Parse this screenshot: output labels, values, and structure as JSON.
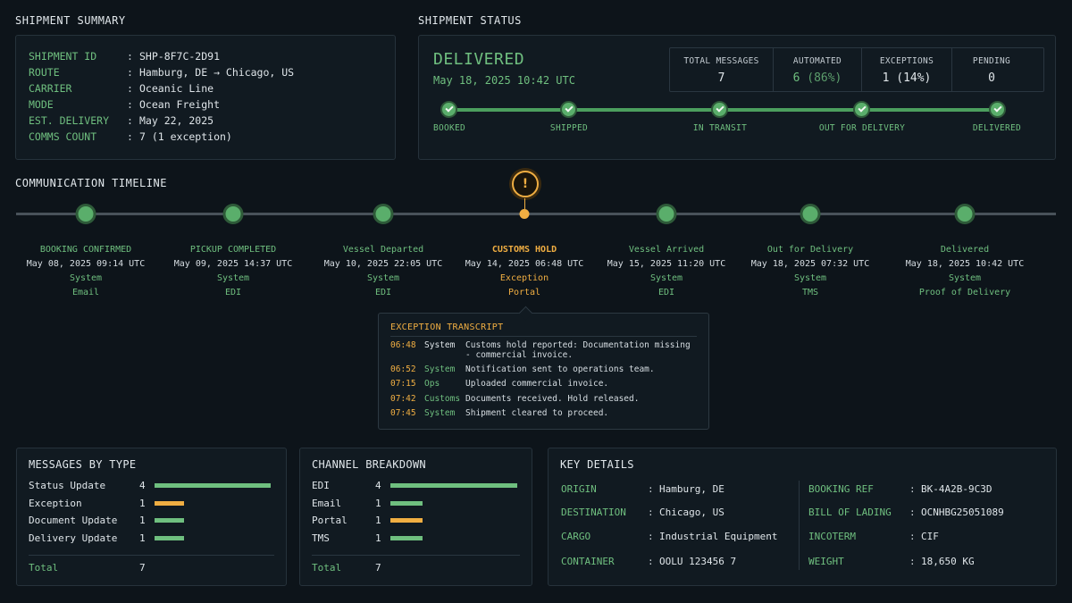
{
  "summary": {
    "title": "SHIPMENT SUMMARY",
    "rows": [
      {
        "key": "SHIPMENT ID",
        "value": "SHP-8F7C-2D91"
      },
      {
        "key": "ROUTE",
        "value": "Hamburg, DE → Chicago, US"
      },
      {
        "key": "CARRIER",
        "value": "Oceanic Line"
      },
      {
        "key": "MODE",
        "value": "Ocean Freight"
      },
      {
        "key": "EST. DELIVERY",
        "value": "May 22, 2025"
      },
      {
        "key": "COMMS COUNT",
        "value": "7 (1 exception)"
      }
    ],
    "separator": ":"
  },
  "status": {
    "title": "SHIPMENT STATUS",
    "state": "DELIVERED",
    "date": "May 18, 2025 10:42 UTC",
    "stats": [
      {
        "label": "TOTAL MESSAGES",
        "value": "7"
      },
      {
        "label": "AUTOMATED",
        "value": "6",
        "extra": "(86%)"
      },
      {
        "label": "EXCEPTIONS",
        "value": "1 (14%)"
      },
      {
        "label": "PENDING",
        "value": "0"
      }
    ],
    "stages": [
      "BOOKED",
      "SHIPPED",
      "IN TRANSIT",
      "OUT FOR DELIVERY",
      "DELIVERED"
    ]
  },
  "timeline": {
    "title": "COMMUNICATION TIMELINE",
    "events": [
      {
        "title": "BOOKING CONFIRMED",
        "time": "May 08, 2025 09:14 UTC",
        "source": "System",
        "channel": "Email"
      },
      {
        "title": "PICKUP COMPLETED",
        "time": "May 09, 2025 14:37 UTC",
        "source": "System",
        "channel": "EDI"
      },
      {
        "title": "Vessel Departed",
        "time": "May 10, 2025 22:05 UTC",
        "source": "System",
        "channel": "EDI"
      },
      {
        "title": "CUSTOMS HOLD",
        "time": "May 14, 2025 06:48 UTC",
        "source": "Exception",
        "channel": "Portal"
      },
      {
        "title": "Vessel Arrived",
        "time": "May 15, 2025 11:20 UTC",
        "source": "System",
        "channel": "EDI"
      },
      {
        "title": "Out for Delivery",
        "time": "May 18, 2025 07:32 UTC",
        "source": "System",
        "channel": "TMS"
      },
      {
        "title": "Delivered",
        "time": "May 18, 2025 10:42 UTC",
        "source": "System",
        "channel": "Proof of Delivery"
      }
    ],
    "warning_glyph": "!"
  },
  "transcript": {
    "title": "EXCEPTION TRANSCRIPT",
    "entries": [
      {
        "time": "06:48",
        "source": "System",
        "message": "Customs hold reported: Documentation missing - commercial invoice."
      },
      {
        "time": "06:52",
        "source": "System",
        "message": "Notification sent to operations team."
      },
      {
        "time": "07:15",
        "source": "Ops",
        "message": "Uploaded commercial invoice."
      },
      {
        "time": "07:42",
        "source": "Customs",
        "message": "Documents received. Hold released."
      },
      {
        "time": "07:45",
        "source": "System",
        "message": "Shipment cleared to proceed."
      }
    ]
  },
  "messages_by_type": {
    "title": "MESSAGES BY TYPE",
    "rows": [
      {
        "label": "Status Update",
        "count": "4",
        "value": 4
      },
      {
        "label": "Exception",
        "count": "1",
        "value": 1
      },
      {
        "label": "Document Update",
        "count": "1",
        "value": 1
      },
      {
        "label": "Delivery Update",
        "count": "1",
        "value": 1
      }
    ],
    "total_label": "Total",
    "total": "7"
  },
  "channel_breakdown": {
    "title": "CHANNEL BREAKDOWN",
    "rows": [
      {
        "label": "EDI",
        "count": "4",
        "value": 4
      },
      {
        "label": "Email",
        "count": "1",
        "value": 1
      },
      {
        "label": "Portal",
        "count": "1",
        "value": 1
      },
      {
        "label": "TMS",
        "count": "1",
        "value": 1
      }
    ],
    "total_label": "Total",
    "total": "7"
  },
  "key_details": {
    "title": "KEY DETAILS",
    "left": [
      {
        "key": "ORIGIN",
        "value": "Hamburg, DE"
      },
      {
        "key": "DESTINATION",
        "value": "Chicago, US"
      },
      {
        "key": "CARGO",
        "value": "Industrial Equipment"
      },
      {
        "key": "CONTAINER",
        "value": "OOLU 123456 7"
      }
    ],
    "right": [
      {
        "key": "BOOKING REF",
        "value": "BK-4A2B-9C3D"
      },
      {
        "key": "BILL OF LADING",
        "value": "OCNHBG25051089"
      },
      {
        "key": "INCOTERM",
        "value": "CIF"
      },
      {
        "key": "WEIGHT",
        "value": "18,650 KG"
      }
    ]
  },
  "colors": {
    "green": "#6fbf7f",
    "bar_green": "#6fbf7f",
    "amber": "#f0ae42",
    "background": "#0d141a",
    "panel": "#111a21"
  }
}
